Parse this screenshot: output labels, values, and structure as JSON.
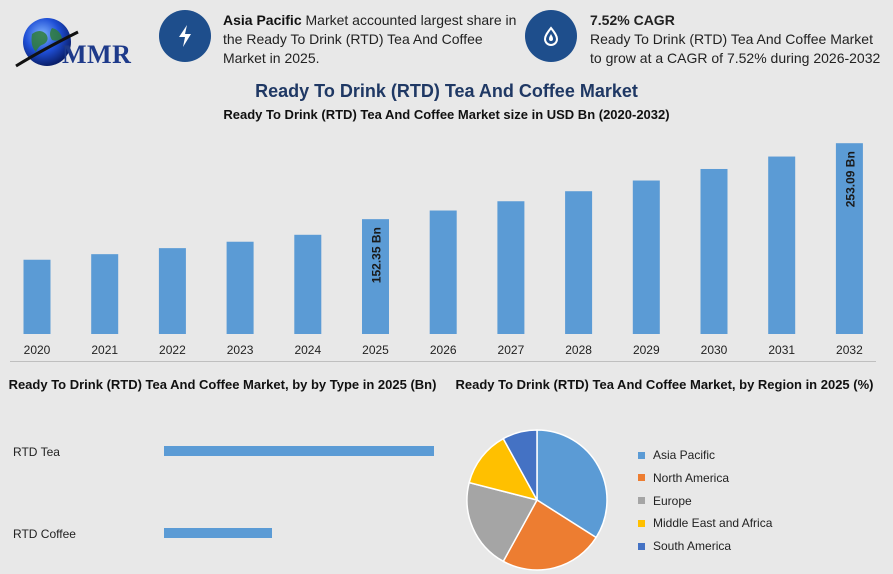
{
  "header": {
    "logo_text": "MMR",
    "info1": {
      "bold": "Asia Pacific",
      "text": " Market accounted largest share in the Ready To Drink (RTD) Tea And Coffee Market in 2025."
    },
    "info2": {
      "bold": "7.52% CAGR",
      "text": "Ready To Drink (RTD) Tea And Coffee Market to grow at a CAGR of 7.52% during 2026-2032"
    }
  },
  "main_title": "Ready To Drink (RTD) Tea And Coffee Market",
  "colors": {
    "bar": "#5b9bd5",
    "title": "#1f3864",
    "icon_bg": "#1e4e8c"
  },
  "chart_data": [
    {
      "type": "bar",
      "title": "Ready To Drink (RTD) Tea And Coffee Market size in USD Bn (2020-2032)",
      "categories": [
        "2020",
        "2021",
        "2022",
        "2023",
        "2024",
        "2025",
        "2026",
        "2027",
        "2028",
        "2029",
        "2030",
        "2031",
        "2032"
      ],
      "values": [
        98.5,
        105.9,
        113.9,
        122.4,
        131.6,
        152.35,
        163.8,
        176.1,
        189.4,
        203.6,
        218.9,
        235.4,
        253.09
      ],
      "data_labels": {
        "2025": "152.35 Bn",
        "2032": "253.09 Bn"
      },
      "ylim": [
        0,
        260
      ],
      "grid": false,
      "color": "#5b9bd5"
    },
    {
      "type": "bar",
      "orientation": "horizontal",
      "title": "Ready To Drink (RTD) Tea And Coffee Market, by by Type in 2025 (Bn)",
      "categories": [
        "RTD Tea",
        "RTD Coffee"
      ],
      "values": [
        100.0,
        40.0
      ],
      "color": "#5b9bd5"
    },
    {
      "type": "pie",
      "title": "Ready To Drink (RTD) Tea And Coffee Market, by Region in 2025 (%)",
      "legend_position": "right",
      "slices": [
        {
          "label": "Asia Pacific",
          "value": 34,
          "color": "#5b9bd5"
        },
        {
          "label": "North America",
          "value": 24,
          "color": "#ed7d31"
        },
        {
          "label": "Europe",
          "value": 21,
          "color": "#a5a5a5"
        },
        {
          "label": "Middle East and Africa",
          "value": 13,
          "color": "#ffc000"
        },
        {
          "label": "South America",
          "value": 8,
          "color": "#4472c4"
        }
      ]
    }
  ]
}
